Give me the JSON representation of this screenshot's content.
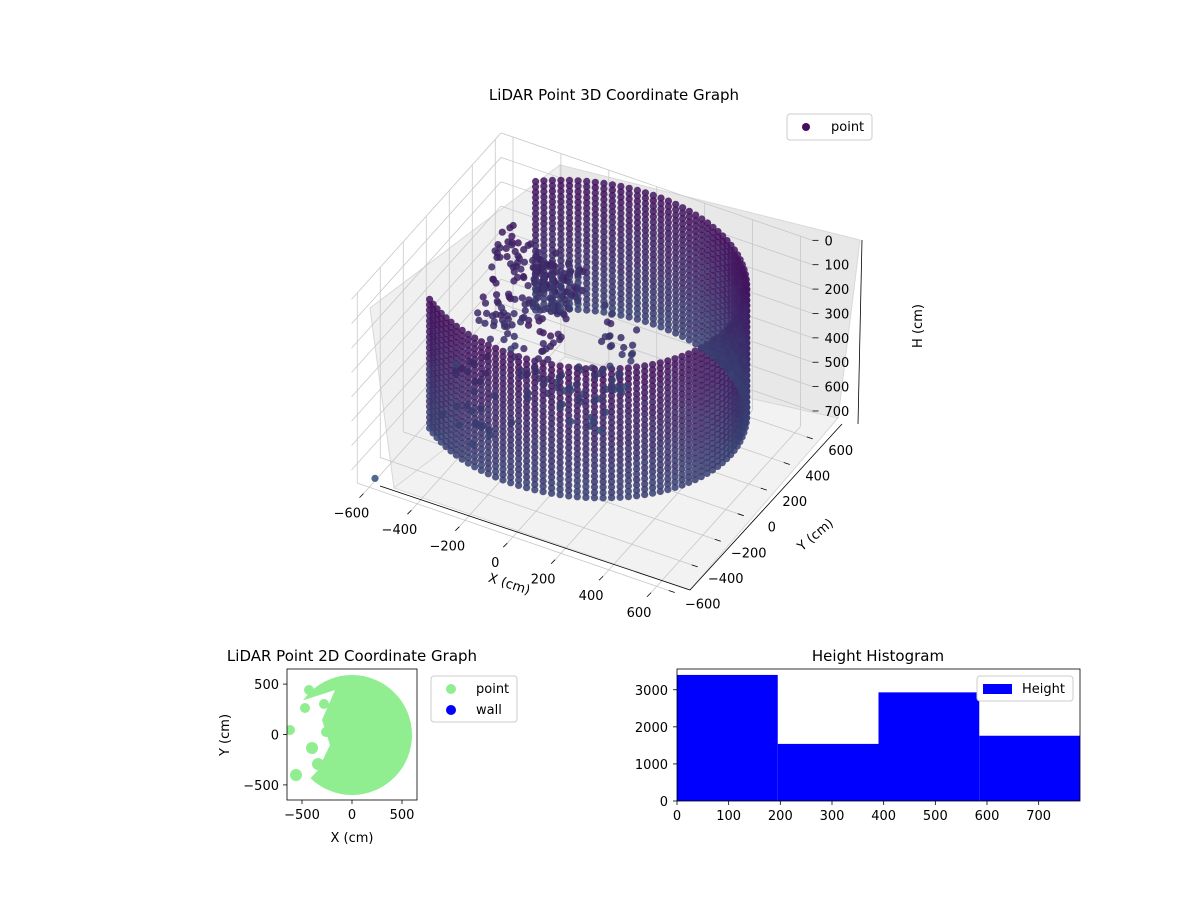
{
  "chart_data": [
    {
      "type": "scatter",
      "projection": "3d",
      "title": "LiDAR Point 3D Coordinate Graph",
      "xlabel": "X (cm)",
      "ylabel": "Y (cm)",
      "zlabel": "H (cm)",
      "xlim": [
        -650,
        650
      ],
      "ylim": [
        -650,
        650
      ],
      "zlim": [
        780,
        0
      ],
      "z_inverted": true,
      "xticks": [
        "−600",
        "−400",
        "−200",
        "0",
        "200",
        "400",
        "600"
      ],
      "yticks": [
        "−600",
        "−400",
        "−200",
        "0",
        "200",
        "400",
        "600"
      ],
      "zticks": [
        "0",
        "100",
        "200",
        "300",
        "400",
        "500",
        "600",
        "700"
      ],
      "grid": true,
      "colormap": "viridis (purple → teal by height)",
      "legend": {
        "position": "upper-right",
        "entries": [
          {
            "label": "point",
            "color": "#440f5c"
          }
        ]
      },
      "series": [
        {
          "name": "point",
          "shape": "cylindrical wall of radius ~620 cm (open toward x≈−600, y≈0) plus interior clusters",
          "points": [
            [
              -550,
              50,
              600
            ],
            [
              -400,
              450,
              300
            ],
            [
              -200,
              300,
              200
            ],
            [
              -250,
              -100,
              150
            ],
            [
              0,
              200,
              250
            ],
            [
              100,
              0,
              550
            ],
            [
              -150,
              -300,
              520
            ],
            [
              -600,
              -550,
              770
            ]
          ]
        }
      ]
    },
    {
      "type": "scatter",
      "title": "LiDAR Point 2D Coordinate Graph",
      "xlabel": "X (cm)",
      "ylabel": "Y (cm)",
      "xlim": [
        -650,
        650
      ],
      "ylim": [
        -650,
        650
      ],
      "xticks": [
        "−500",
        "0",
        "500"
      ],
      "yticks": [
        "−500",
        "0",
        "500"
      ],
      "legend": {
        "position": "right",
        "entries": [
          {
            "label": "point",
            "color": "#90ee90"
          },
          {
            "label": "wall",
            "color": "#0000ff"
          }
        ]
      },
      "series": [
        {
          "name": "point",
          "color": "#90ee90",
          "shape": "filled disk of radius ~600 cm with a notch on the left side (x≈−600 to −250)"
        },
        {
          "name": "wall",
          "color": "#0000ff",
          "points": []
        }
      ]
    },
    {
      "type": "bar",
      "subtype": "histogram",
      "title": "Height Histogram",
      "xlim": [
        0,
        780
      ],
      "ylim": [
        0,
        3560
      ],
      "xticks": [
        "0",
        "100",
        "200",
        "300",
        "400",
        "500",
        "600",
        "700"
      ],
      "yticks": [
        "0",
        "1000",
        "2000",
        "3000"
      ],
      "bins": [
        [
          0,
          195
        ],
        [
          195,
          390
        ],
        [
          390,
          585
        ],
        [
          585,
          780
        ]
      ],
      "series": [
        {
          "name": "Height",
          "color": "#0000ff",
          "values": [
            3400,
            1540,
            2930,
            1760
          ]
        }
      ],
      "legend": {
        "position": "upper-right",
        "entries": [
          {
            "label": "Height",
            "color": "#0000ff"
          }
        ]
      }
    }
  ]
}
